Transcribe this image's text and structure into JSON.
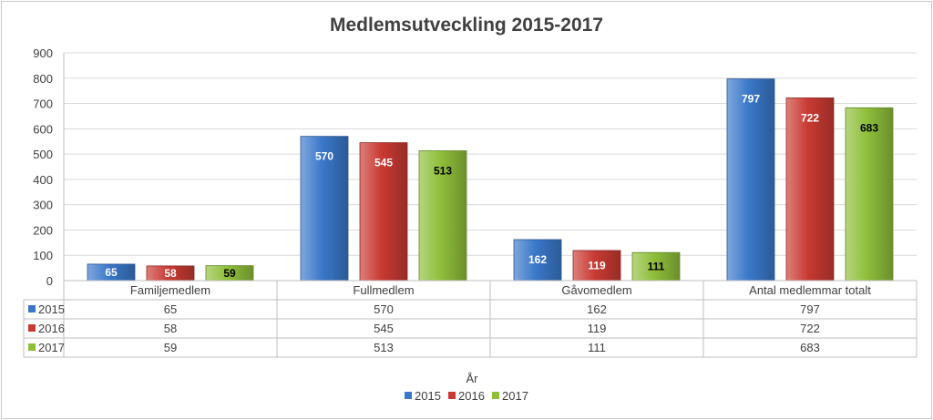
{
  "chart_data": {
    "type": "bar",
    "title": "Medlemsutveckling 2015-2017",
    "xlabel": "År",
    "ylabel": "",
    "ylim": [
      0,
      900
    ],
    "yticks": [
      0,
      100,
      200,
      300,
      400,
      500,
      600,
      700,
      800,
      900
    ],
    "grid": true,
    "legend_position": "bottom",
    "categories": [
      "Familjemedlem",
      "Fullmedlem",
      "Gåvomedlem",
      "Antal medlemmar totalt"
    ],
    "series": [
      {
        "name": "2015",
        "color": "#3a78c9",
        "values": [
          65,
          570,
          162,
          797
        ]
      },
      {
        "name": "2016",
        "color": "#c93a33",
        "values": [
          58,
          545,
          119,
          722
        ]
      },
      {
        "name": "2017",
        "color": "#8fbf3a",
        "values": [
          59,
          513,
          111,
          683
        ]
      }
    ]
  }
}
